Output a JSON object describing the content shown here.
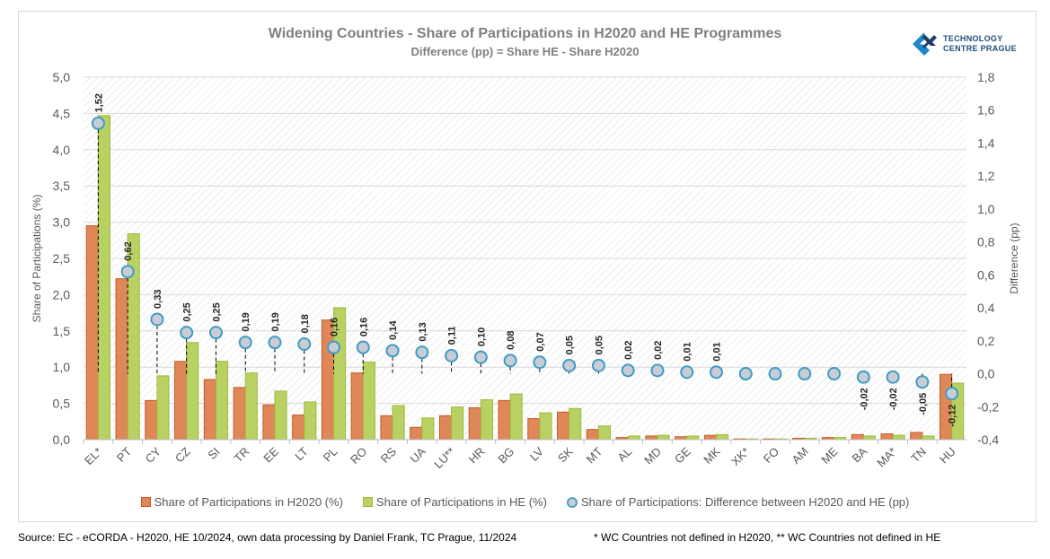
{
  "header": {
    "title": "Widening Countries - Share of Participations in H2020 and HE Programmes",
    "subtitle": "Difference (pp) = Share HE - Share H2020",
    "logo_line1": "TECHNOLOGY",
    "logo_line2": "CENTRE PRAGUE"
  },
  "footer": {
    "source": "Source: EC - eCORDA - H2020, HE 10/2024, own data processing by Daniel  Frank, TC Prague, 11/2024",
    "note": "* WC Countries not defined in H2020, ** WC Countries not defined in HE"
  },
  "colors": {
    "h2020": "#e0875a",
    "h2020_edge": "#c55a22",
    "he": "#b8d162",
    "he_edge": "#9cbb3c",
    "diff_fill": "#c9ccd4",
    "diff_edge": "#3d9dc6",
    "axis_text": "#595959",
    "grid": "#d9d9d9"
  },
  "chart_data": {
    "type": "bar",
    "title": "Widening Countries - Share of Participations in H2020 and HE Programmes",
    "subtitle": "Difference (pp) = Share HE - Share H2020",
    "categories": [
      "EL*",
      "PT",
      "CY",
      "CZ",
      "SI",
      "TR",
      "EE",
      "LT",
      "PL",
      "RO",
      "RS",
      "UA",
      "LU**",
      "HR",
      "BG",
      "LV",
      "SK",
      "MT",
      "AL",
      "MD",
      "GE",
      "MK",
      "XK*",
      "FO",
      "AM",
      "ME",
      "BA",
      "MA*",
      "TN",
      "HU"
    ],
    "series": [
      {
        "name": "Share of Participations in H2020 (%)",
        "type": "bar",
        "axis": "left",
        "values": [
          2.95,
          2.22,
          0.54,
          1.08,
          0.83,
          0.72,
          0.48,
          0.34,
          1.65,
          0.92,
          0.33,
          0.17,
          0.33,
          0.44,
          0.54,
          0.29,
          0.38,
          0.14,
          0.03,
          0.05,
          0.04,
          0.06,
          0.01,
          0.01,
          0.02,
          0.03,
          0.07,
          0.08,
          0.1,
          0.9
        ]
      },
      {
        "name": "Share of Participations in HE (%)",
        "type": "bar",
        "axis": "left",
        "values": [
          4.47,
          2.84,
          0.88,
          1.34,
          1.08,
          0.92,
          0.67,
          0.52,
          1.82,
          1.07,
          0.47,
          0.3,
          0.45,
          0.55,
          0.63,
          0.37,
          0.43,
          0.19,
          0.05,
          0.06,
          0.05,
          0.07,
          0.01,
          0.01,
          0.02,
          0.03,
          0.05,
          0.06,
          0.05,
          0.78
        ]
      },
      {
        "name": "Share of Participations: Difference between H2020 and HE (pp)",
        "type": "scatter",
        "axis": "right",
        "values": [
          1.52,
          0.62,
          0.33,
          0.25,
          0.25,
          0.19,
          0.19,
          0.18,
          0.16,
          0.16,
          0.14,
          0.13,
          0.11,
          0.1,
          0.08,
          0.07,
          0.05,
          0.05,
          0.02,
          0.02,
          0.01,
          0.01,
          0.0,
          0.0,
          0.0,
          0.0,
          -0.02,
          -0.02,
          -0.05,
          -0.12
        ],
        "labels": [
          "1,52",
          "0,62",
          "0,33",
          "0,25",
          "0,25",
          "0,19",
          "0,19",
          "0,18",
          "0,16",
          "0,16",
          "0,14",
          "0,13",
          "0,11",
          "0,10",
          "0,08",
          "0,07",
          "0,05",
          "0,05",
          "0,02",
          "0,02",
          "0,01",
          "0,01",
          "",
          "",
          "",
          "",
          "-0,02",
          "-0,02",
          "-0,05",
          "-0,12"
        ]
      }
    ],
    "ylabel": "Share of Participations (%)",
    "y2label": "Difference (pp)",
    "ylim": [
      0,
      5
    ],
    "y2lim": [
      -0.4,
      1.8
    ],
    "yticks": [
      "0,0",
      "0,5",
      "1,0",
      "1,5",
      "2,0",
      "2,5",
      "3,0",
      "3,5",
      "4,0",
      "4,5",
      "5,0"
    ],
    "y2ticks": [
      "-0,4",
      "-0,2",
      "0,0",
      "0,2",
      "0,4",
      "0,6",
      "0,8",
      "1,0",
      "1,2",
      "1,4",
      "1,6",
      "1,8"
    ],
    "grid": true,
    "legend": "bottom"
  }
}
